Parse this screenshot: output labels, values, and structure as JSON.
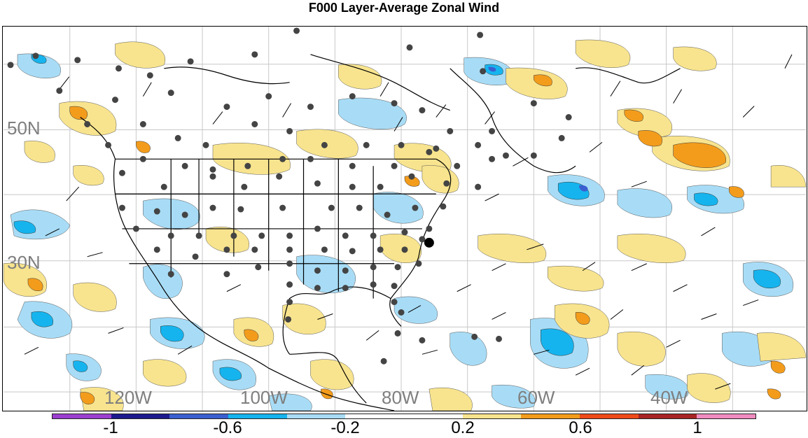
{
  "title": "F000 Layer-Average Zonal Wind",
  "lat_labels": [
    "50N",
    "30N"
  ],
  "lon_labels": [
    "120W",
    "100W",
    "80W",
    "60W",
    "40W"
  ],
  "colorbar": {
    "colors": [
      "#9a3fcf",
      "#1c1a8e",
      "#3a5fd0",
      "#16b4ee",
      "#a8dcf6",
      "#ffffff",
      "#ffffff",
      "#f8e48e",
      "#f39c1c",
      "#ee4a1a",
      "#a82424",
      "#f08cc0"
    ],
    "labels": [
      "-1",
      "-0.6",
      "-0.2",
      "0.2",
      "0.6",
      "1"
    ]
  },
  "marker": {
    "label": "",
    "color": "#000000"
  }
}
